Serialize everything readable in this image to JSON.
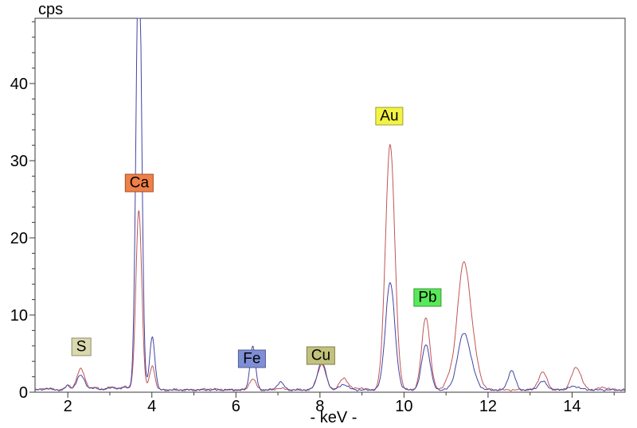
{
  "chart_data": {
    "type": "line",
    "title": "",
    "xlabel": "- keV -",
    "ylabel": "cps",
    "xlim": [
      1.22,
      15.26
    ],
    "ylim": [
      0,
      48.45
    ],
    "x_major_ticks": [
      2,
      4,
      6,
      8,
      10,
      12,
      14
    ],
    "x_minor_ticks": [
      3,
      5,
      7,
      9,
      11,
      13,
      15
    ],
    "y_major_ticks": [
      0,
      10,
      20,
      30,
      40
    ],
    "y_minor_step": 2,
    "grid": false,
    "legend_position": "none",
    "frame_color": "#3a3a3a",
    "series": [
      {
        "name": "spectrum-red",
        "color": "#c05656",
        "baseline_cps": 0.3,
        "peaks": [
          {
            "keV": 1.5,
            "cps": 0.2,
            "sigma": 0.1
          },
          {
            "keV": 2.0,
            "cps": 0.6,
            "sigma": 0.055
          },
          {
            "keV": 2.31,
            "cps": 2.7,
            "sigma": 0.095
          },
          {
            "keV": 2.66,
            "cps": 0.3,
            "sigma": 0.08
          },
          {
            "keV": 3.05,
            "cps": 0.4,
            "sigma": 0.09
          },
          {
            "keV": 3.37,
            "cps": 0.45,
            "sigma": 0.08
          },
          {
            "keV": 3.69,
            "cps": 23.3,
            "sigma": 0.07
          },
          {
            "keV": 4.01,
            "cps": 3.1,
            "sigma": 0.062
          },
          {
            "keV": 5.4,
            "cps": 0.12,
            "sigma": 0.15
          },
          {
            "keV": 6.4,
            "cps": 1.45,
            "sigma": 0.075
          },
          {
            "keV": 7.06,
            "cps": 0.25,
            "sigma": 0.08
          },
          {
            "keV": 8.04,
            "cps": 3.3,
            "sigma": 0.1
          },
          {
            "keV": 8.57,
            "cps": 1.5,
            "sigma": 0.1
          },
          {
            "keV": 8.95,
            "cps": 0.25,
            "sigma": 0.1
          },
          {
            "keV": 9.67,
            "cps": 31.8,
            "sigma": 0.112
          },
          {
            "keV": 10.52,
            "cps": 9.4,
            "sigma": 0.098
          },
          {
            "keV": 11.05,
            "cps": 1.0,
            "sigma": 0.09
          },
          {
            "keV": 11.42,
            "cps": 16.2,
            "sigma": 0.155
          },
          {
            "keV": 11.68,
            "cps": 2.5,
            "sigma": 0.13
          },
          {
            "keV": 13.3,
            "cps": 2.3,
            "sigma": 0.1
          },
          {
            "keV": 14.1,
            "cps": 2.9,
            "sigma": 0.115
          },
          {
            "keV": 14.75,
            "cps": 0.3,
            "sigma": 0.12
          }
        ]
      },
      {
        "name": "spectrum-blue",
        "color": "#4343a4",
        "baseline_cps": 0.3,
        "peaks": [
          {
            "keV": 1.5,
            "cps": 0.15,
            "sigma": 0.1
          },
          {
            "keV": 2.0,
            "cps": 0.55,
            "sigma": 0.055
          },
          {
            "keV": 2.31,
            "cps": 1.9,
            "sigma": 0.095
          },
          {
            "keV": 2.66,
            "cps": 0.25,
            "sigma": 0.08
          },
          {
            "keV": 3.05,
            "cps": 0.35,
            "sigma": 0.09
          },
          {
            "keV": 3.37,
            "cps": 0.4,
            "sigma": 0.08
          },
          {
            "keV": 3.69,
            "cps": 60.0,
            "sigma": 0.065
          },
          {
            "keV": 4.01,
            "cps": 6.9,
            "sigma": 0.062
          },
          {
            "keV": 6.4,
            "cps": 5.6,
            "sigma": 0.065
          },
          {
            "keV": 7.06,
            "cps": 1.0,
            "sigma": 0.08
          },
          {
            "keV": 8.04,
            "cps": 3.6,
            "sigma": 0.1
          },
          {
            "keV": 8.57,
            "cps": 0.7,
            "sigma": 0.1
          },
          {
            "keV": 9.67,
            "cps": 13.9,
            "sigma": 0.112
          },
          {
            "keV": 10.52,
            "cps": 5.9,
            "sigma": 0.098
          },
          {
            "keV": 11.42,
            "cps": 7.2,
            "sigma": 0.145
          },
          {
            "keV": 11.65,
            "cps": 1.0,
            "sigma": 0.12
          },
          {
            "keV": 12.56,
            "cps": 2.5,
            "sigma": 0.085
          },
          {
            "keV": 13.3,
            "cps": 1.1,
            "sigma": 0.1
          },
          {
            "keV": 14.05,
            "cps": 0.45,
            "sigma": 0.13
          }
        ]
      }
    ],
    "annotations": [
      {
        "text": "S",
        "keV": 2.32,
        "cps": 5.9,
        "bg": "#d9d9ad"
      },
      {
        "text": "Ca",
        "keV": 3.7,
        "cps": 27.1,
        "bg": "#f08048"
      },
      {
        "text": "Fe",
        "keV": 6.38,
        "cps": 4.3,
        "bg": "#7f8fd6"
      },
      {
        "text": "Cu",
        "keV": 8.02,
        "cps": 4.7,
        "bg": "#c2c27d"
      },
      {
        "text": "Au",
        "keV": 9.65,
        "cps": 35.8,
        "bg": "#f3f345"
      },
      {
        "text": "Pb",
        "keV": 10.56,
        "cps": 12.3,
        "bg": "#58e958"
      }
    ]
  }
}
